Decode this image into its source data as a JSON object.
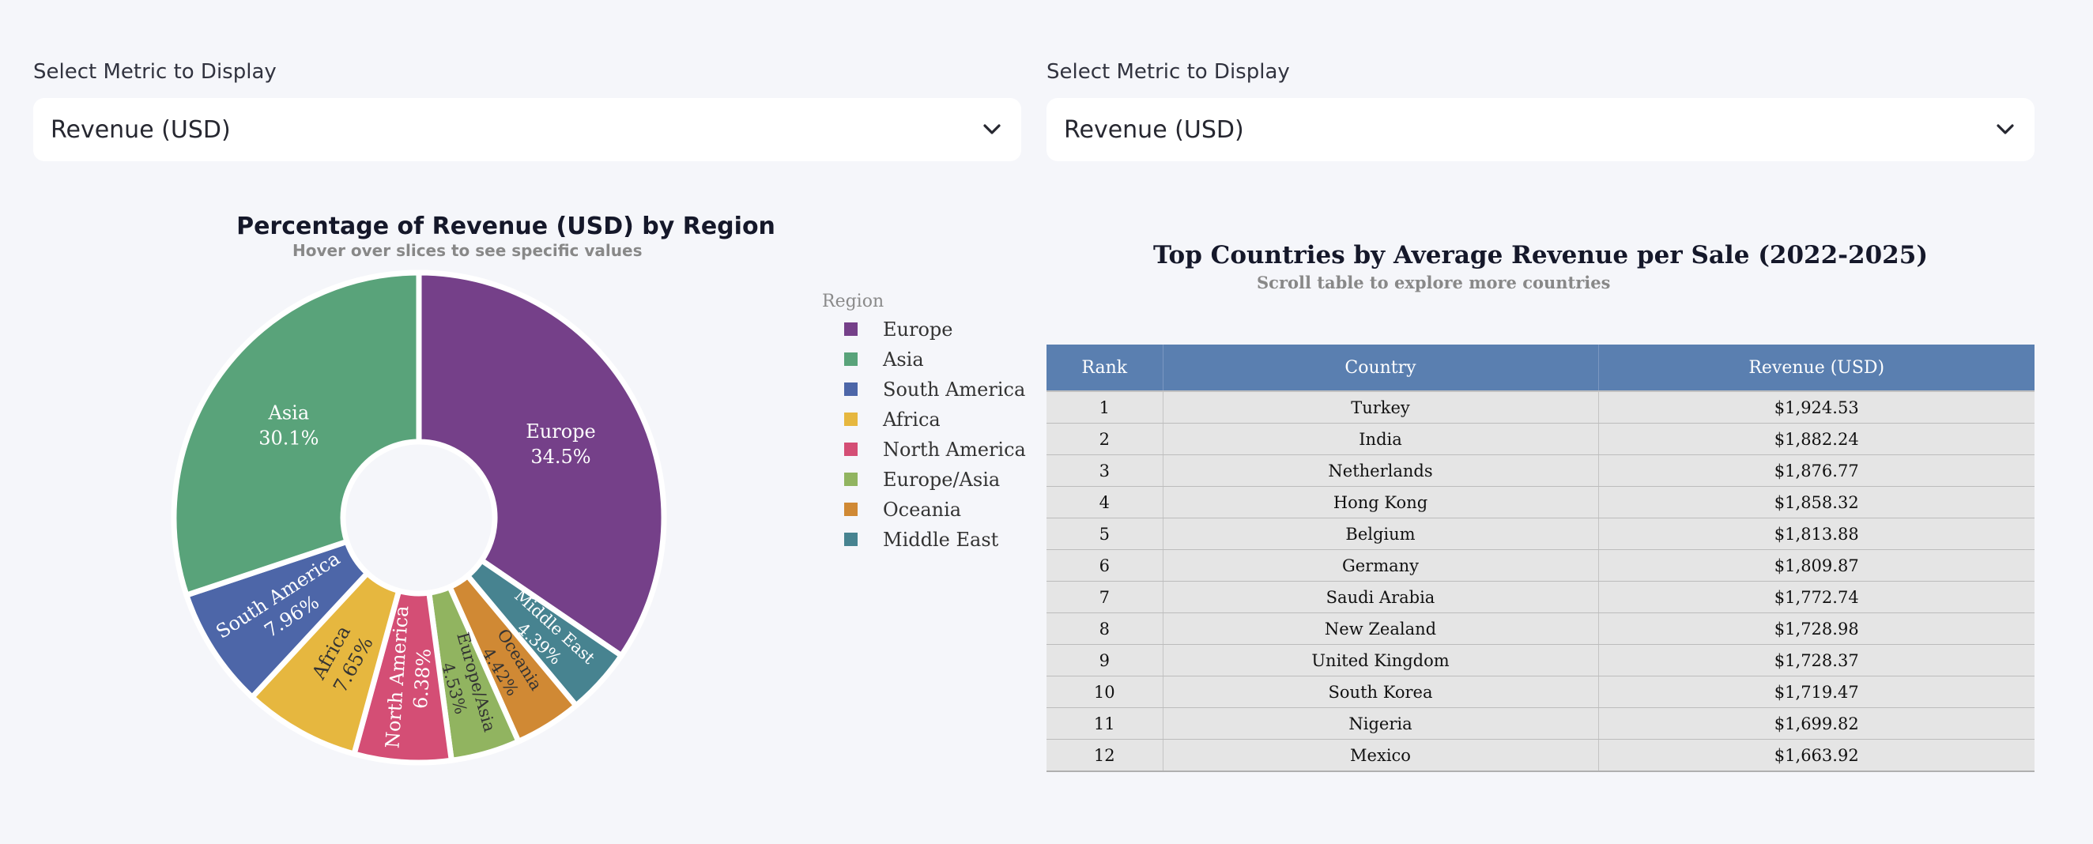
{
  "controls": [
    {
      "label": "Select Metric to Display",
      "value": "Revenue (USD)"
    },
    {
      "label": "Select Metric to Display",
      "value": "Revenue (USD)"
    }
  ],
  "chart_data": {
    "type": "pie",
    "hole": true,
    "title": "Percentage of Revenue (USD) by Region",
    "subtitle": "Hover over slices to see specific values",
    "legend_title": "Region",
    "legend_position": "right",
    "slices": [
      {
        "label": "Europe",
        "percent": 34.5,
        "percent_label": "34.5%",
        "color": "#754089"
      },
      {
        "label": "Middle East",
        "percent": 4.39,
        "percent_label": "4.39%",
        "color": "#478390"
      },
      {
        "label": "Oceania",
        "percent": 4.42,
        "percent_label": "4.42%",
        "color": "#d08934"
      },
      {
        "label": "Europe/Asia",
        "percent": 4.53,
        "percent_label": "4.53%",
        "color": "#91b460"
      },
      {
        "label": "North America",
        "percent": 6.38,
        "percent_label": "6.38%",
        "color": "#d44e75"
      },
      {
        "label": "Africa",
        "percent": 7.65,
        "percent_label": "7.65%",
        "color": "#e6b73f"
      },
      {
        "label": "South America",
        "percent": 7.96,
        "percent_label": "7.96%",
        "color": "#4d66a8"
      },
      {
        "label": "Asia",
        "percent": 30.1,
        "percent_label": "30.1%",
        "color": "#59a37a"
      }
    ],
    "legend": [
      "Europe",
      "Asia",
      "South America",
      "Africa",
      "North America",
      "Europe/Asia",
      "Oceania",
      "Middle East"
    ]
  },
  "table": {
    "title": "Top Countries by Average Revenue per Sale (2022-2025)",
    "subtitle": "Scroll table to explore more countries",
    "columns": [
      "Rank",
      "Country",
      "Revenue (USD)"
    ],
    "rows": [
      [
        "1",
        "Turkey",
        "$1,924.53"
      ],
      [
        "2",
        "India",
        "$1,882.24"
      ],
      [
        "3",
        "Netherlands",
        "$1,876.77"
      ],
      [
        "4",
        "Hong Kong",
        "$1,858.32"
      ],
      [
        "5",
        "Belgium",
        "$1,813.88"
      ],
      [
        "6",
        "Germany",
        "$1,809.87"
      ],
      [
        "7",
        "Saudi Arabia",
        "$1,772.74"
      ],
      [
        "8",
        "New Zealand",
        "$1,728.98"
      ],
      [
        "9",
        "United Kingdom",
        "$1,728.37"
      ],
      [
        "10",
        "South Korea",
        "$1,719.47"
      ],
      [
        "11",
        "Nigeria",
        "$1,699.82"
      ],
      [
        "12",
        "Mexico",
        "$1,663.92"
      ]
    ]
  }
}
